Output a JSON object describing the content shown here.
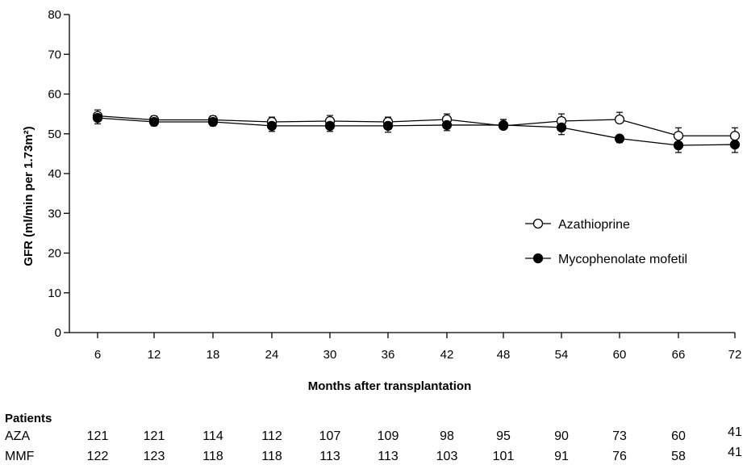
{
  "chart_data": {
    "type": "line",
    "title": "",
    "xlabel": "Months after transplantation",
    "ylabel": "GFR (ml/min per 1.73m²)",
    "x": [
      6,
      12,
      18,
      24,
      30,
      36,
      42,
      48,
      54,
      60,
      66,
      72
    ],
    "ylim": [
      0,
      80
    ],
    "yticks": [
      0,
      10,
      20,
      30,
      40,
      50,
      60,
      70,
      80
    ],
    "grid": false,
    "legend_position": "right-middle",
    "series": [
      {
        "name": "Azathioprine",
        "marker": "open-circle",
        "values": [
          54.5,
          53.5,
          53.5,
          53,
          53.2,
          53,
          53.6,
          52,
          53.2,
          53.6,
          49.5,
          49.5
        ],
        "error": [
          1.5,
          1.0,
          1.0,
          1.2,
          1.4,
          1.2,
          1.4,
          1.6,
          1.8,
          1.8,
          2.0,
          2.0
        ]
      },
      {
        "name": "Mycophenolate mofetil",
        "marker": "filled-circle",
        "values": [
          54,
          53,
          53,
          52,
          52,
          52,
          52.2,
          52.2,
          51.6,
          48.8,
          47.1,
          47.3
        ],
        "error": [
          1.5,
          1.0,
          1.0,
          1.4,
          1.4,
          1.6,
          1.4,
          1.4,
          1.8,
          1.0,
          1.8,
          2.0
        ]
      }
    ]
  },
  "patients_table": {
    "header": "Patients",
    "rows": [
      {
        "label": "AZA",
        "values": [
          "121",
          "121",
          "114",
          "112",
          "107",
          "109",
          "98",
          "95",
          "90",
          "73",
          "60",
          "41"
        ]
      },
      {
        "label": "MMF",
        "values": [
          "122",
          "123",
          "118",
          "118",
          "113",
          "113",
          "103",
          "101",
          "91",
          "76",
          "58",
          "41"
        ]
      }
    ]
  },
  "colors": {
    "line": "#000000",
    "open_marker_fill": "#ffffff",
    "filled_marker_fill": "#000000",
    "background": "#ffffff"
  }
}
